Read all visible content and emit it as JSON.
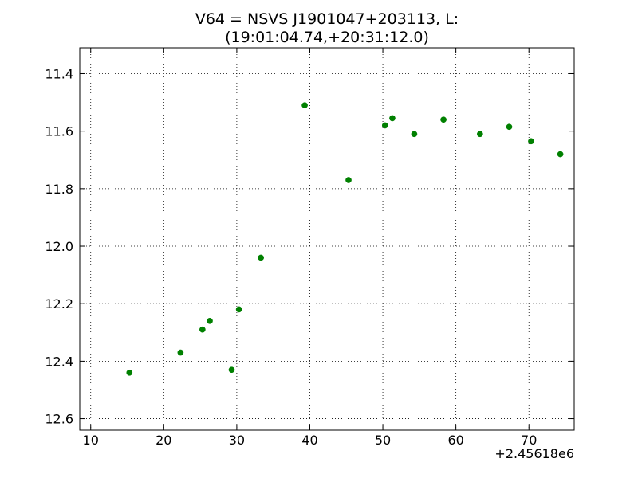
{
  "chart_data": {
    "type": "scatter",
    "title": [
      "V64 = NSVS J1901047+203113, L:",
      "(19:01:04.74,+20:31:12.0)"
    ],
    "xlabel": "",
    "ylabel": "",
    "x_offset_label": "+2.45618e6",
    "xlim": [
      8.5,
      76.2
    ],
    "ylim": [
      12.64,
      11.31
    ],
    "y_inverted": true,
    "grid": true,
    "marker_color": "#008000",
    "x_ticks": [
      10,
      20,
      30,
      40,
      50,
      60,
      70
    ],
    "x_tick_labels": [
      "10",
      "20",
      "30",
      "40",
      "50",
      "60",
      "70"
    ],
    "y_ticks": [
      11.4,
      11.6,
      11.8,
      12.0,
      12.2,
      12.4,
      12.6
    ],
    "y_tick_labels": [
      "11.4",
      "11.6",
      "11.8",
      "12.0",
      "12.2",
      "12.4",
      "12.6"
    ],
    "points": [
      {
        "x": 15.3,
        "y": 12.44
      },
      {
        "x": 22.3,
        "y": 12.37
      },
      {
        "x": 25.3,
        "y": 12.29
      },
      {
        "x": 26.3,
        "y": 12.26
      },
      {
        "x": 29.3,
        "y": 12.43
      },
      {
        "x": 30.3,
        "y": 12.22
      },
      {
        "x": 33.3,
        "y": 12.04
      },
      {
        "x": 39.3,
        "y": 11.51
      },
      {
        "x": 45.3,
        "y": 11.77
      },
      {
        "x": 50.3,
        "y": 11.58
      },
      {
        "x": 51.3,
        "y": 11.555
      },
      {
        "x": 54.3,
        "y": 11.61
      },
      {
        "x": 58.3,
        "y": 11.56
      },
      {
        "x": 63.3,
        "y": 11.61
      },
      {
        "x": 67.3,
        "y": 11.585
      },
      {
        "x": 70.3,
        "y": 11.635
      },
      {
        "x": 74.3,
        "y": 11.68
      }
    ]
  }
}
